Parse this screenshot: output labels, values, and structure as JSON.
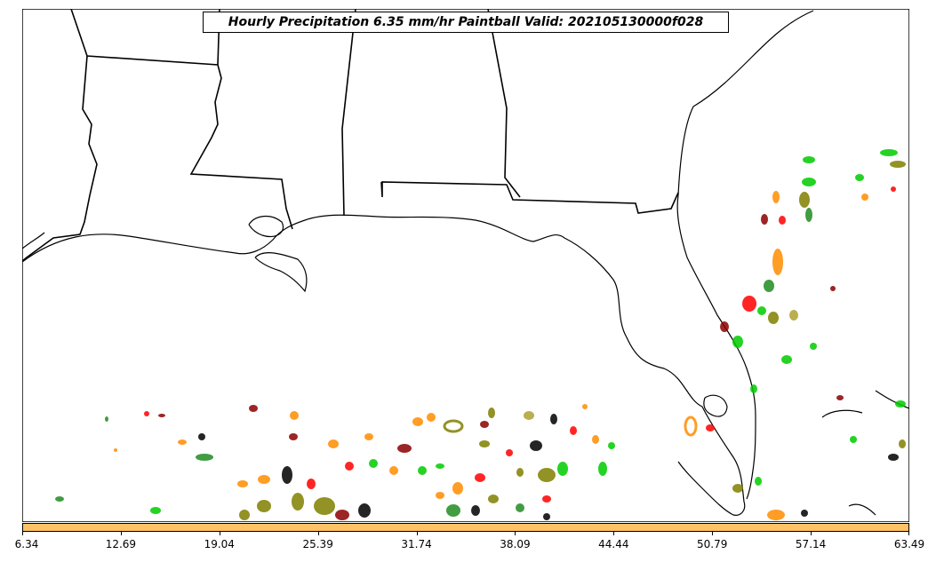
{
  "title": "Hourly Precipitation 6.35 mm/hr Paintball Valid: 202105130000f028",
  "colorbar": {
    "color": "#ffc266",
    "ticks": [
      "6.34",
      "12.69",
      "19.04",
      "25.39",
      "31.74",
      "38.09",
      "44.44",
      "50.79",
      "57.14",
      "63.49"
    ]
  },
  "map": {
    "region": "US Southeast / Gulf of Mexico",
    "coastline_color": "#000000",
    "member_colors": [
      "#00cc00",
      "#ff0000",
      "#ff8c00",
      "#808000",
      "#8b0000",
      "#228b22",
      "#000000",
      "#b0a030"
    ]
  }
}
